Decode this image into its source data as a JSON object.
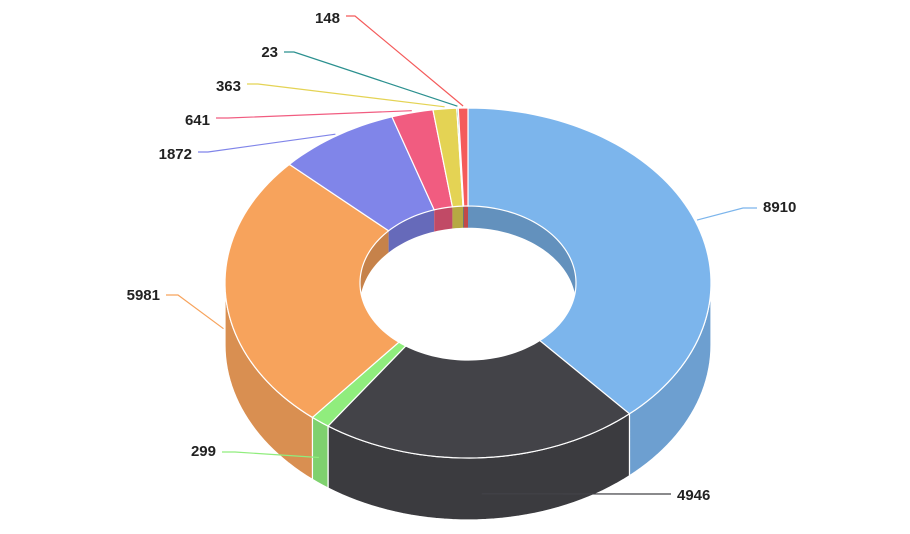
{
  "chart_data": {
    "type": "pie",
    "variant": "3d-donut",
    "slices": [
      {
        "value": 8910,
        "label": "8910",
        "color": "#7cb5ec"
      },
      {
        "value": 4946,
        "label": "4946",
        "color": "#434348"
      },
      {
        "value": 299,
        "label": "299",
        "color": "#90ed7d"
      },
      {
        "value": 5981,
        "label": "5981",
        "color": "#f7a35c"
      },
      {
        "value": 1872,
        "label": "1872",
        "color": "#8085e9"
      },
      {
        "value": 641,
        "label": "641",
        "color": "#f15c80"
      },
      {
        "value": 363,
        "label": "363",
        "color": "#e4d354"
      },
      {
        "value": 23,
        "label": "23",
        "color": "#2b908f"
      },
      {
        "value": 148,
        "label": "148",
        "color": "#f45b5b"
      }
    ],
    "start_angle": "top, clockwise",
    "legend": "none",
    "title": ""
  }
}
